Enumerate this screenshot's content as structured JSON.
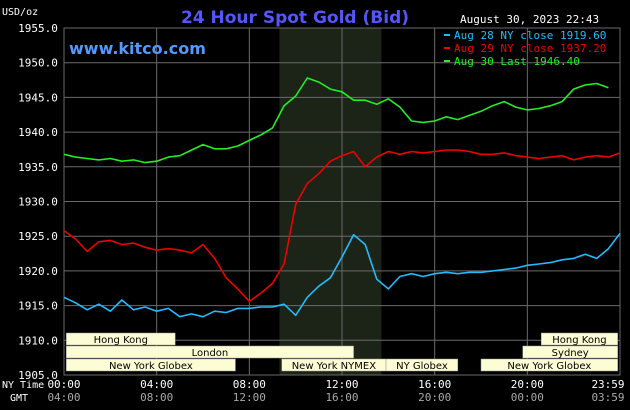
{
  "chart_data": {
    "type": "line",
    "title": "24 Hour Spot Gold (Bid)",
    "ylabel": "USD/oz",
    "website": "www.kitco.com",
    "timestamp": "August 30, 2023 22:43",
    "ylim": [
      1905.0,
      1955.0
    ],
    "y_ticks": [
      "1955.0",
      "1950.0",
      "1945.0",
      "1940.0",
      "1935.0",
      "1930.0",
      "1925.0",
      "1920.0",
      "1915.0",
      "1910.0",
      "1905.0"
    ],
    "x_domain_hours": [
      0,
      24
    ],
    "x_ticks": [
      {
        "h": 0,
        "ny": "00:00",
        "gmt": "04:00"
      },
      {
        "h": 4,
        "ny": "04:00",
        "gmt": "08:00"
      },
      {
        "h": 8,
        "ny": "08:00",
        "gmt": "12:00"
      },
      {
        "h": 12,
        "ny": "12:00",
        "gmt": "16:00"
      },
      {
        "h": 16,
        "ny": "16:00",
        "gmt": "20:00"
      },
      {
        "h": 20,
        "ny": "20:00",
        "gmt": "00:00"
      },
      {
        "h": 24,
        "ny": "23:59",
        "gmt": "03:59"
      }
    ],
    "x_axis_labels": {
      "ny": "NY Time",
      "gmt": "GMT"
    },
    "shaded_session_hours": [
      9.3,
      13.7
    ],
    "colors": {
      "background": "#000000",
      "grid": "#6a6a6a",
      "text": "#ffffff",
      "title": "#5555ff",
      "website": "#5599ff",
      "shade": "#1c2418",
      "session_bar": "#fdfdd5"
    },
    "series": [
      {
        "name": "Aug 28 NY close 1919.60",
        "color": "#22bbff",
        "x": [
          0,
          0.5,
          1,
          1.5,
          2,
          2.5,
          3,
          3.5,
          4,
          4.5,
          5,
          5.5,
          6,
          6.5,
          7,
          7.5,
          8,
          8.5,
          9,
          9.5,
          10,
          10.5,
          11,
          11.5,
          12,
          12.5,
          13,
          13.5,
          14,
          14.5,
          15,
          15.5,
          16,
          16.5,
          17,
          17.5,
          18,
          18.5,
          19,
          19.5,
          20,
          20.5,
          21,
          21.5,
          22,
          22.5,
          23,
          23.5,
          24
        ],
        "y": [
          1916.2,
          1915.4,
          1914.4,
          1915.2,
          1914.2,
          1915.8,
          1914.4,
          1914.8,
          1914.2,
          1914.6,
          1913.4,
          1913.8,
          1913.4,
          1914.2,
          1914.0,
          1914.6,
          1914.6,
          1914.8,
          1914.8,
          1915.2,
          1913.6,
          1916.2,
          1917.8,
          1919.0,
          1922.0,
          1925.2,
          1923.8,
          1918.8,
          1917.4,
          1919.2,
          1919.6,
          1919.2,
          1919.6,
          1919.8,
          1919.6,
          1919.8,
          1919.8,
          1920.0,
          1920.2,
          1920.4,
          1920.8,
          1921.0,
          1921.2,
          1921.6,
          1921.8,
          1922.4,
          1921.8,
          1923.2,
          1925.4
        ]
      },
      {
        "name": "Aug 29 NY close 1937.20",
        "color": "#ee0000",
        "x": [
          0,
          0.5,
          1,
          1.5,
          2,
          2.5,
          3,
          3.5,
          4,
          4.5,
          5,
          5.5,
          6,
          6.5,
          7,
          7.5,
          8,
          8.5,
          9,
          9.5,
          10,
          10.5,
          11,
          11.5,
          12,
          12.5,
          13,
          13.5,
          14,
          14.5,
          15,
          15.5,
          16,
          16.5,
          17,
          17.5,
          18,
          18.5,
          19,
          19.5,
          20,
          20.5,
          21,
          21.5,
          22,
          22.5,
          23,
          23.5,
          24
        ],
        "y": [
          1925.8,
          1924.6,
          1922.8,
          1924.2,
          1924.4,
          1923.8,
          1924.0,
          1923.4,
          1923.0,
          1923.2,
          1923.0,
          1922.6,
          1923.8,
          1921.8,
          1919.0,
          1917.4,
          1915.6,
          1916.8,
          1918.2,
          1921.0,
          1929.6,
          1932.6,
          1934.0,
          1935.8,
          1936.6,
          1937.2,
          1935.0,
          1936.4,
          1937.2,
          1936.8,
          1937.2,
          1937.0,
          1937.2,
          1937.4,
          1937.4,
          1937.2,
          1936.8,
          1936.8,
          1937.0,
          1936.6,
          1936.4,
          1936.2,
          1936.4,
          1936.6,
          1936.0,
          1936.4,
          1936.6,
          1936.4,
          1937.0
        ]
      },
      {
        "name": "Aug 30 Last 1946.40",
        "color": "#22ee22",
        "x": [
          0,
          0.5,
          1,
          1.5,
          2,
          2.5,
          3,
          3.5,
          4,
          4.5,
          5,
          5.5,
          6,
          6.5,
          7,
          7.5,
          8,
          8.5,
          9,
          9.5,
          10,
          10.5,
          11,
          11.5,
          12,
          12.5,
          13,
          13.5,
          14,
          14.5,
          15,
          15.5,
          16,
          16.5,
          17,
          17.5,
          18,
          18.5,
          19,
          19.5,
          20,
          20.5,
          21,
          21.5,
          22,
          22.5,
          23,
          23.5
        ],
        "y": [
          1936.8,
          1936.4,
          1936.2,
          1936.0,
          1936.2,
          1935.8,
          1936.0,
          1935.6,
          1935.8,
          1936.4,
          1936.6,
          1937.4,
          1938.2,
          1937.6,
          1937.6,
          1938.0,
          1938.8,
          1939.6,
          1940.6,
          1943.8,
          1945.2,
          1947.8,
          1947.2,
          1946.2,
          1945.8,
          1944.6,
          1944.6,
          1944.0,
          1944.8,
          1943.6,
          1941.6,
          1941.4,
          1941.6,
          1942.2,
          1941.8,
          1942.4,
          1943.0,
          1943.8,
          1944.4,
          1943.6,
          1943.2,
          1943.4,
          1943.8,
          1944.4,
          1946.2,
          1946.8,
          1947.0,
          1946.4
        ]
      }
    ],
    "market_sessions": [
      {
        "name": "Hong Kong",
        "row": 0,
        "start": 0.1,
        "end": 4.8
      },
      {
        "name": "London",
        "row": 1,
        "start": 0.1,
        "end": 12.5
      },
      {
        "name": "New York Globex",
        "row": 2,
        "start": 0.1,
        "end": 7.4
      },
      {
        "name": "New York NYMEX",
        "row": 2,
        "start": 9.4,
        "end": 13.9
      },
      {
        "name": "NY Globex",
        "row": 2,
        "start": 13.9,
        "end": 17.0
      },
      {
        "name": "Hong Kong",
        "row": 0,
        "start": 20.6,
        "end": 23.9
      },
      {
        "name": "Sydney",
        "row": 1,
        "start": 19.8,
        "end": 23.9
      },
      {
        "name": "New York Globex",
        "row": 2,
        "start": 18.0,
        "end": 23.9
      }
    ]
  }
}
